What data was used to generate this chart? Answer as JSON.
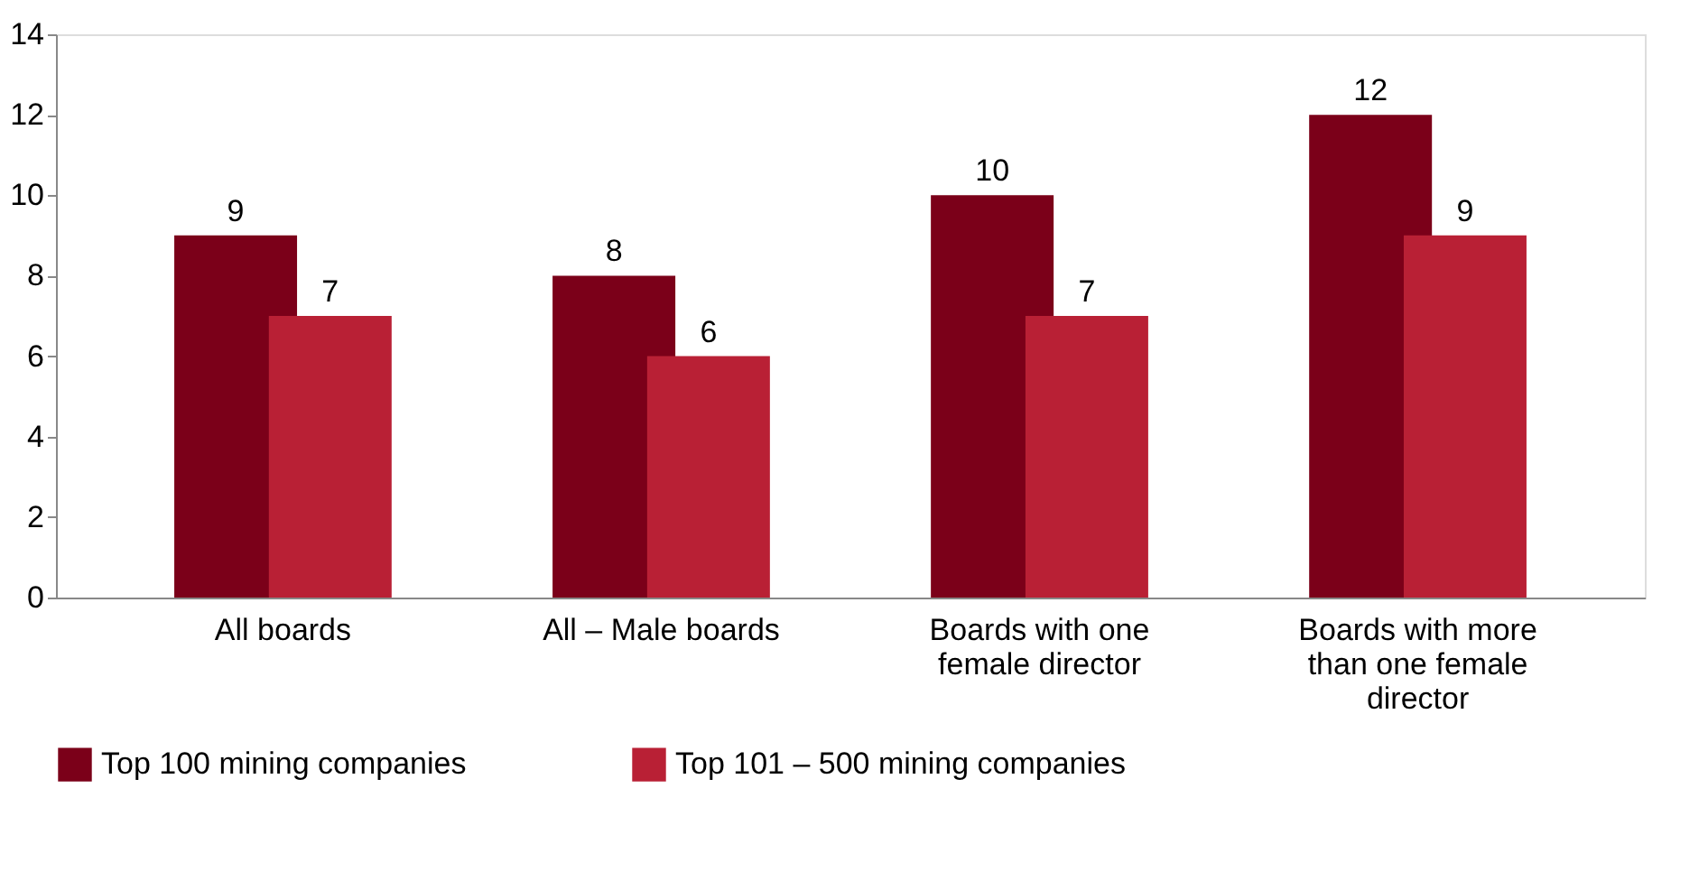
{
  "chart_data": {
    "type": "bar",
    "categories": [
      "All boards",
      "All – Male boards",
      "Boards with one female director",
      "Boards with more than one female director"
    ],
    "series": [
      {
        "name": "Top 100 mining companies",
        "color": "#7b0019",
        "values": [
          9,
          8,
          10,
          12
        ]
      },
      {
        "name": "Top 101 – 500 mining companies",
        "color": "#b92035",
        "values": [
          7,
          6,
          7,
          9
        ]
      }
    ],
    "ylim": [
      0,
      14
    ],
    "yticks": [
      0,
      2,
      4,
      6,
      8,
      10,
      12,
      14
    ],
    "grid": false,
    "legend": "bottom",
    "data_labels": true
  }
}
